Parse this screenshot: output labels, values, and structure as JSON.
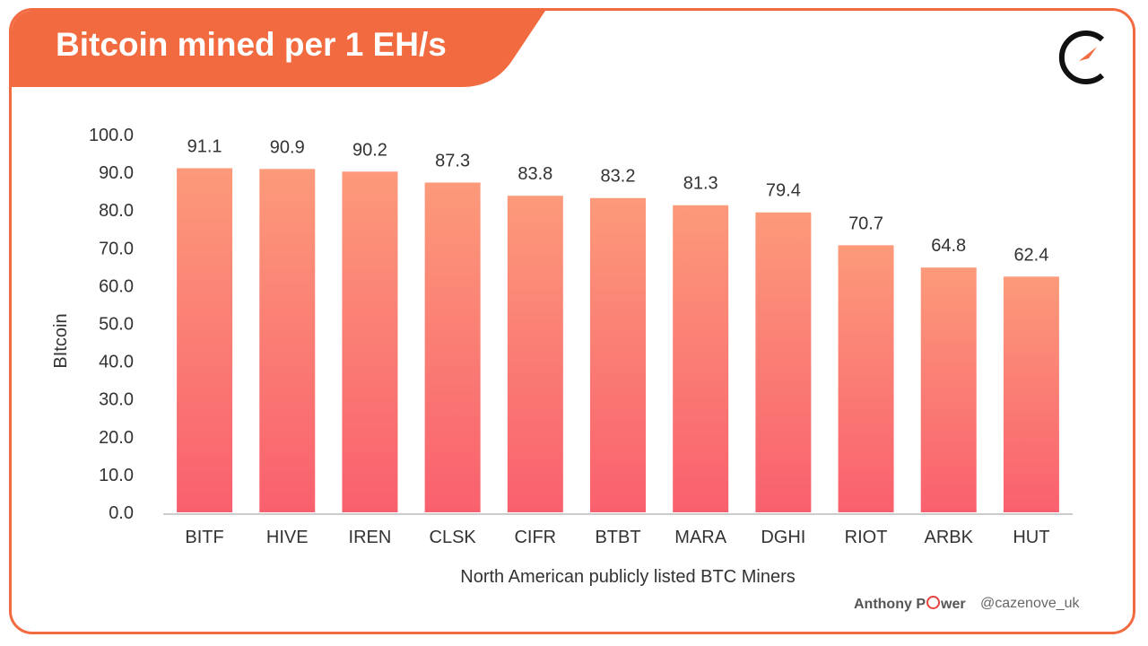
{
  "header": {
    "title": "Bitcoin mined per 1 EH/s"
  },
  "footer": {
    "author_prefix": "Anthony P",
    "author_suffix": "wer",
    "handle": "@cazenove_uk"
  },
  "colors": {
    "accent": "#f26a3f",
    "bar_top": "#fc9a7a",
    "bar_bottom": "#f9606e",
    "axis": "#cccccc",
    "text": "#333333"
  },
  "chart_data": {
    "type": "bar",
    "categories": [
      "BITF",
      "HIVE",
      "IREN",
      "CLSK",
      "CIFR",
      "BTBT",
      "MARA",
      "DGHI",
      "RIOT",
      "ARBK",
      "HUT"
    ],
    "values": [
      91.1,
      90.9,
      90.2,
      87.3,
      83.8,
      83.2,
      81.3,
      79.4,
      70.7,
      64.8,
      62.4
    ],
    "value_labels": [
      "91.1",
      "90.9",
      "90.2",
      "87.3",
      "83.8",
      "83.2",
      "81.3",
      "79.4",
      "70.7",
      "64.8",
      "62.4"
    ],
    "yticks": [
      "0.0",
      "10.0",
      "20.0",
      "30.0",
      "40.0",
      "50.0",
      "60.0",
      "70.0",
      "80.0",
      "90.0",
      "100.0"
    ],
    "title": "Bitcoin mined per 1 EH/s",
    "xlabel": "North American publicly listed BTC Miners",
    "ylabel": "BItcoin",
    "ylim": [
      0,
      100
    ],
    "grid": false,
    "legend": "none"
  }
}
